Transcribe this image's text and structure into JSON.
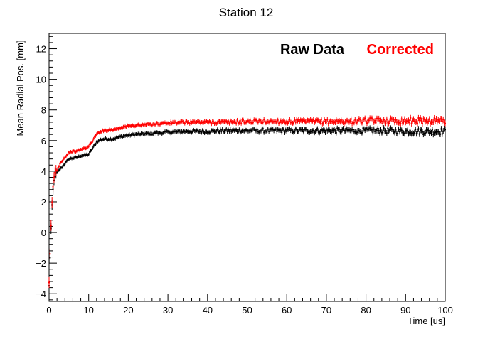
{
  "chart_data": {
    "type": "scatter",
    "title": "Station 12",
    "xlabel": "Time [us]",
    "ylabel": "Mean Radial Pos. [mm]",
    "xlim": [
      0,
      100
    ],
    "ylim": [
      -4.5,
      13
    ],
    "x_ticks": [
      "0",
      "10",
      "20",
      "30",
      "40",
      "50",
      "60",
      "70",
      "80",
      "90",
      "100"
    ],
    "y_ticks": [
      "−4",
      "−2",
      "0",
      "2",
      "4",
      "6",
      "8",
      "10",
      "12"
    ],
    "grid": false,
    "error_bars": true,
    "legend_placement": "top-right",
    "series": [
      {
        "name": "Raw Data",
        "color": "#000000",
        "x": [
          0.0,
          0.2,
          0.4,
          0.6,
          0.8,
          1.0,
          1.3,
          1.6,
          2.0,
          3.0,
          4.0,
          5.0,
          6.0,
          7.0,
          8.0,
          9.0,
          10.0,
          11.0,
          12.0,
          13.0,
          14.0,
          15.0,
          16.0,
          18.0,
          20.0,
          22.0,
          25.0,
          30.0,
          35.0,
          40.0,
          45.0,
          50.0,
          55.0,
          60.0,
          65.0,
          70.0,
          75.0,
          80.0,
          85.0,
          90.0,
          95.0,
          100.0
        ],
        "y": [
          -3.5,
          -2.0,
          -0.5,
          1.0,
          2.0,
          2.8,
          3.5,
          3.8,
          3.9,
          4.2,
          4.5,
          4.8,
          4.85,
          4.9,
          5.0,
          5.05,
          5.1,
          5.5,
          5.9,
          6.05,
          6.1,
          6.1,
          6.1,
          6.25,
          6.35,
          6.4,
          6.45,
          6.55,
          6.6,
          6.6,
          6.65,
          6.65,
          6.65,
          6.65,
          6.65,
          6.65,
          6.65,
          6.65,
          6.65,
          6.6,
          6.6,
          6.6
        ]
      },
      {
        "name": "Corrected",
        "color": "#ff0000",
        "x": [
          0.0,
          0.2,
          0.4,
          0.6,
          0.8,
          1.0,
          1.3,
          1.6,
          2.0,
          3.0,
          4.0,
          5.0,
          6.0,
          7.0,
          8.0,
          9.0,
          10.0,
          11.0,
          12.0,
          13.0,
          14.0,
          15.0,
          16.0,
          18.0,
          20.0,
          22.0,
          25.0,
          30.0,
          35.0,
          40.0,
          45.0,
          50.0,
          55.0,
          60.0,
          65.0,
          70.0,
          75.0,
          80.0,
          85.0,
          90.0,
          95.0,
          100.0
        ],
        "y": [
          -3.3,
          -1.8,
          -0.3,
          1.2,
          2.2,
          3.0,
          3.7,
          4.0,
          4.1,
          4.6,
          4.9,
          5.2,
          5.3,
          5.3,
          5.4,
          5.5,
          5.6,
          6.0,
          6.4,
          6.6,
          6.65,
          6.7,
          6.7,
          6.85,
          6.95,
          7.0,
          7.05,
          7.15,
          7.2,
          7.2,
          7.2,
          7.25,
          7.25,
          7.25,
          7.25,
          7.25,
          7.25,
          7.3,
          7.3,
          7.3,
          7.3,
          7.3
        ]
      }
    ]
  }
}
